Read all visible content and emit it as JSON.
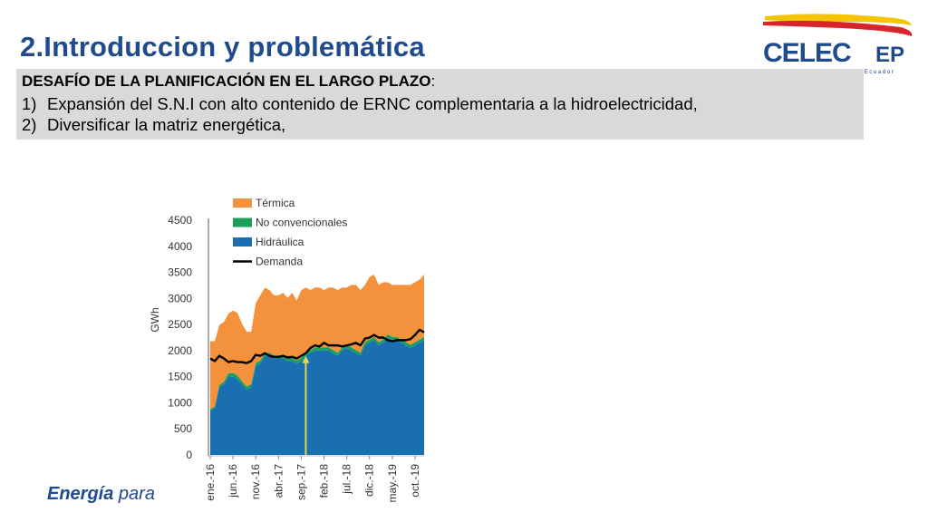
{
  "slide": {
    "title": "2.Introduccion y problemática",
    "logo": {
      "brand": "CELEC",
      "suffix": "EP",
      "tagline": "Corporación Eléctrica del Ecuador",
      "colors": {
        "blue": "#1f4a8c",
        "yellow": "#f5c400",
        "red": "#d6262b"
      }
    },
    "challenge": {
      "heading": "DESAFÍO DE LA PLANIFICACIÓN EN EL LARGO PLAZO",
      "heading_suffix": ":",
      "items": [
        {
          "num": "1)",
          "text": "Expansión del S.N.I con alto contenido de ERNC complementaria a la hidroelectricidad,"
        },
        {
          "num": "2)",
          "text": "Diversificar la matriz energética,"
        }
      ]
    },
    "footer": {
      "bold": "Energía",
      "light": "para"
    }
  },
  "chart_data": {
    "type": "area",
    "xlabel": "",
    "ylabel": "GWh",
    "ylim": [
      0,
      4500
    ],
    "yticks": [
      0,
      500,
      1000,
      1500,
      2000,
      2500,
      3000,
      3500,
      4000,
      4500
    ],
    "xtick_labels": [
      "ene.-16",
      "jun.-16",
      "nov.-16",
      "abr.-17",
      "sep.-17",
      "feb.-18",
      "jul.-18",
      "dic.-18",
      "may.-19",
      "oct.-19"
    ],
    "xtick_index": [
      0,
      5,
      10,
      15,
      20,
      25,
      30,
      35,
      40,
      45
    ],
    "legend": {
      "placement": "top-left"
    },
    "series": [
      {
        "name": "Hidráulica",
        "kind": "area",
        "color": "#1a6fb0",
        "values": [
          850,
          900,
          1300,
          1350,
          1500,
          1500,
          1450,
          1350,
          1250,
          1300,
          1700,
          1750,
          1900,
          1900,
          1850,
          1850,
          1850,
          1800,
          1800,
          1750,
          1800,
          1900,
          1950,
          2000,
          2000,
          2000,
          2000,
          1950,
          1900,
          2000,
          2050,
          2000,
          1950,
          1900,
          2100,
          2150,
          2200,
          2100,
          2150,
          2250,
          2200,
          2200,
          2150,
          2100,
          2050,
          2100,
          2150,
          2200
        ]
      },
      {
        "name": "No convencionales",
        "kind": "area",
        "color": "#1aa05a",
        "values": [
          30,
          30,
          40,
          50,
          60,
          70,
          70,
          60,
          60,
          60,
          60,
          60,
          60,
          60,
          60,
          60,
          60,
          60,
          60,
          60,
          60,
          60,
          60,
          60,
          60,
          60,
          60,
          60,
          60,
          60,
          60,
          60,
          60,
          60,
          60,
          60,
          60,
          60,
          60,
          60,
          60,
          60,
          60,
          60,
          60,
          60,
          60,
          60
        ]
      },
      {
        "name": "Térmica",
        "kind": "area",
        "color": "#f4913d",
        "values": [
          1300,
          1250,
          1150,
          1150,
          1150,
          1200,
          1200,
          1100,
          1050,
          1000,
          1150,
          1250,
          1250,
          1200,
          1150,
          1150,
          1200,
          1150,
          1250,
          1150,
          1300,
          1250,
          1150,
          1150,
          1150,
          1100,
          1150,
          1200,
          1200,
          1150,
          1100,
          1200,
          1250,
          1200,
          1100,
          1200,
          1200,
          1100,
          1100,
          1000,
          1000,
          1000,
          1050,
          1100,
          1150,
          1150,
          1150,
          1200
        ]
      },
      {
        "name": "Demanda",
        "kind": "line",
        "color": "#000000",
        "values": [
          1850,
          1800,
          1900,
          1850,
          1780,
          1800,
          1780,
          1780,
          1760,
          1800,
          1920,
          1900,
          1950,
          1900,
          1880,
          1880,
          1900,
          1870,
          1880,
          1850,
          1900,
          1950,
          2050,
          2100,
          2080,
          2150,
          2100,
          2100,
          2100,
          2080,
          2100,
          2120,
          2150,
          2100,
          2230,
          2250,
          2300,
          2250,
          2250,
          2200,
          2180,
          2200,
          2200,
          2200,
          2220,
          2300,
          2400,
          2350
        ]
      }
    ],
    "annotation": {
      "type": "arrow",
      "color": "#e8d44a",
      "x_index": 21,
      "from": 0,
      "to": 1900
    }
  }
}
